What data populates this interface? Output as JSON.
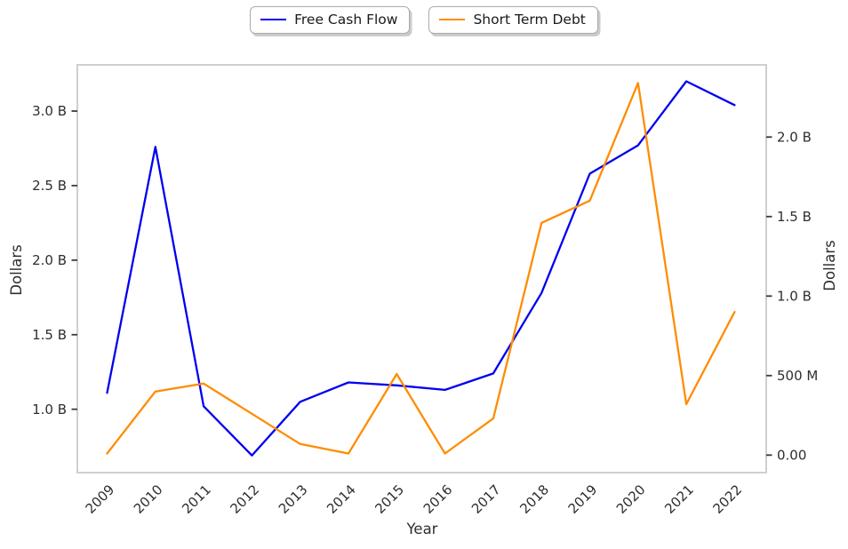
{
  "chart_data": {
    "type": "line",
    "title": "",
    "xlabel": "Year",
    "ylabel_left": "Dollars",
    "ylabel_right": "Dollars",
    "grid": false,
    "legend_position": "top-center",
    "categories": [
      "2009",
      "2010",
      "2011",
      "2012",
      "2013",
      "2014",
      "2015",
      "2016",
      "2017",
      "2018",
      "2019",
      "2020",
      "2021",
      "2022"
    ],
    "series": [
      {
        "name": "Free Cash Flow",
        "axis": "left",
        "color": "#0000f0",
        "unit": "billions of dollars",
        "values": [
          1.11,
          2.76,
          1.02,
          0.69,
          1.05,
          1.18,
          1.16,
          1.13,
          1.24,
          1.78,
          2.58,
          2.77,
          3.2,
          3.04
        ]
      },
      {
        "name": "Short Term Debt",
        "axis": "right",
        "color": "#ff8c00",
        "unit": "billions of dollars",
        "values": [
          0.01,
          0.4,
          0.45,
          0.26,
          0.07,
          0.01,
          0.51,
          0.01,
          0.23,
          1.46,
          1.6,
          2.34,
          0.32,
          0.9
        ]
      }
    ],
    "left_axis": {
      "label": "Dollars",
      "range": [
        0.575,
        3.31
      ],
      "ticks": [
        {
          "v": 1.0,
          "label": "1.0 B"
        },
        {
          "v": 1.5,
          "label": "1.5 B"
        },
        {
          "v": 2.0,
          "label": "2.0 B"
        },
        {
          "v": 2.5,
          "label": "2.5 B"
        },
        {
          "v": 3.0,
          "label": "3.0 B"
        }
      ]
    },
    "right_axis": {
      "label": "Dollars",
      "range": [
        -0.11,
        2.454
      ],
      "ticks": [
        {
          "v": 0.0,
          "label": "0.00"
        },
        {
          "v": 0.5,
          "label": "500 M"
        },
        {
          "v": 1.0,
          "label": "1.0 B"
        },
        {
          "v": 1.5,
          "label": "1.5 B"
        },
        {
          "v": 2.0,
          "label": "2.0 B"
        }
      ]
    },
    "x_tick_rotation_deg": 45
  }
}
